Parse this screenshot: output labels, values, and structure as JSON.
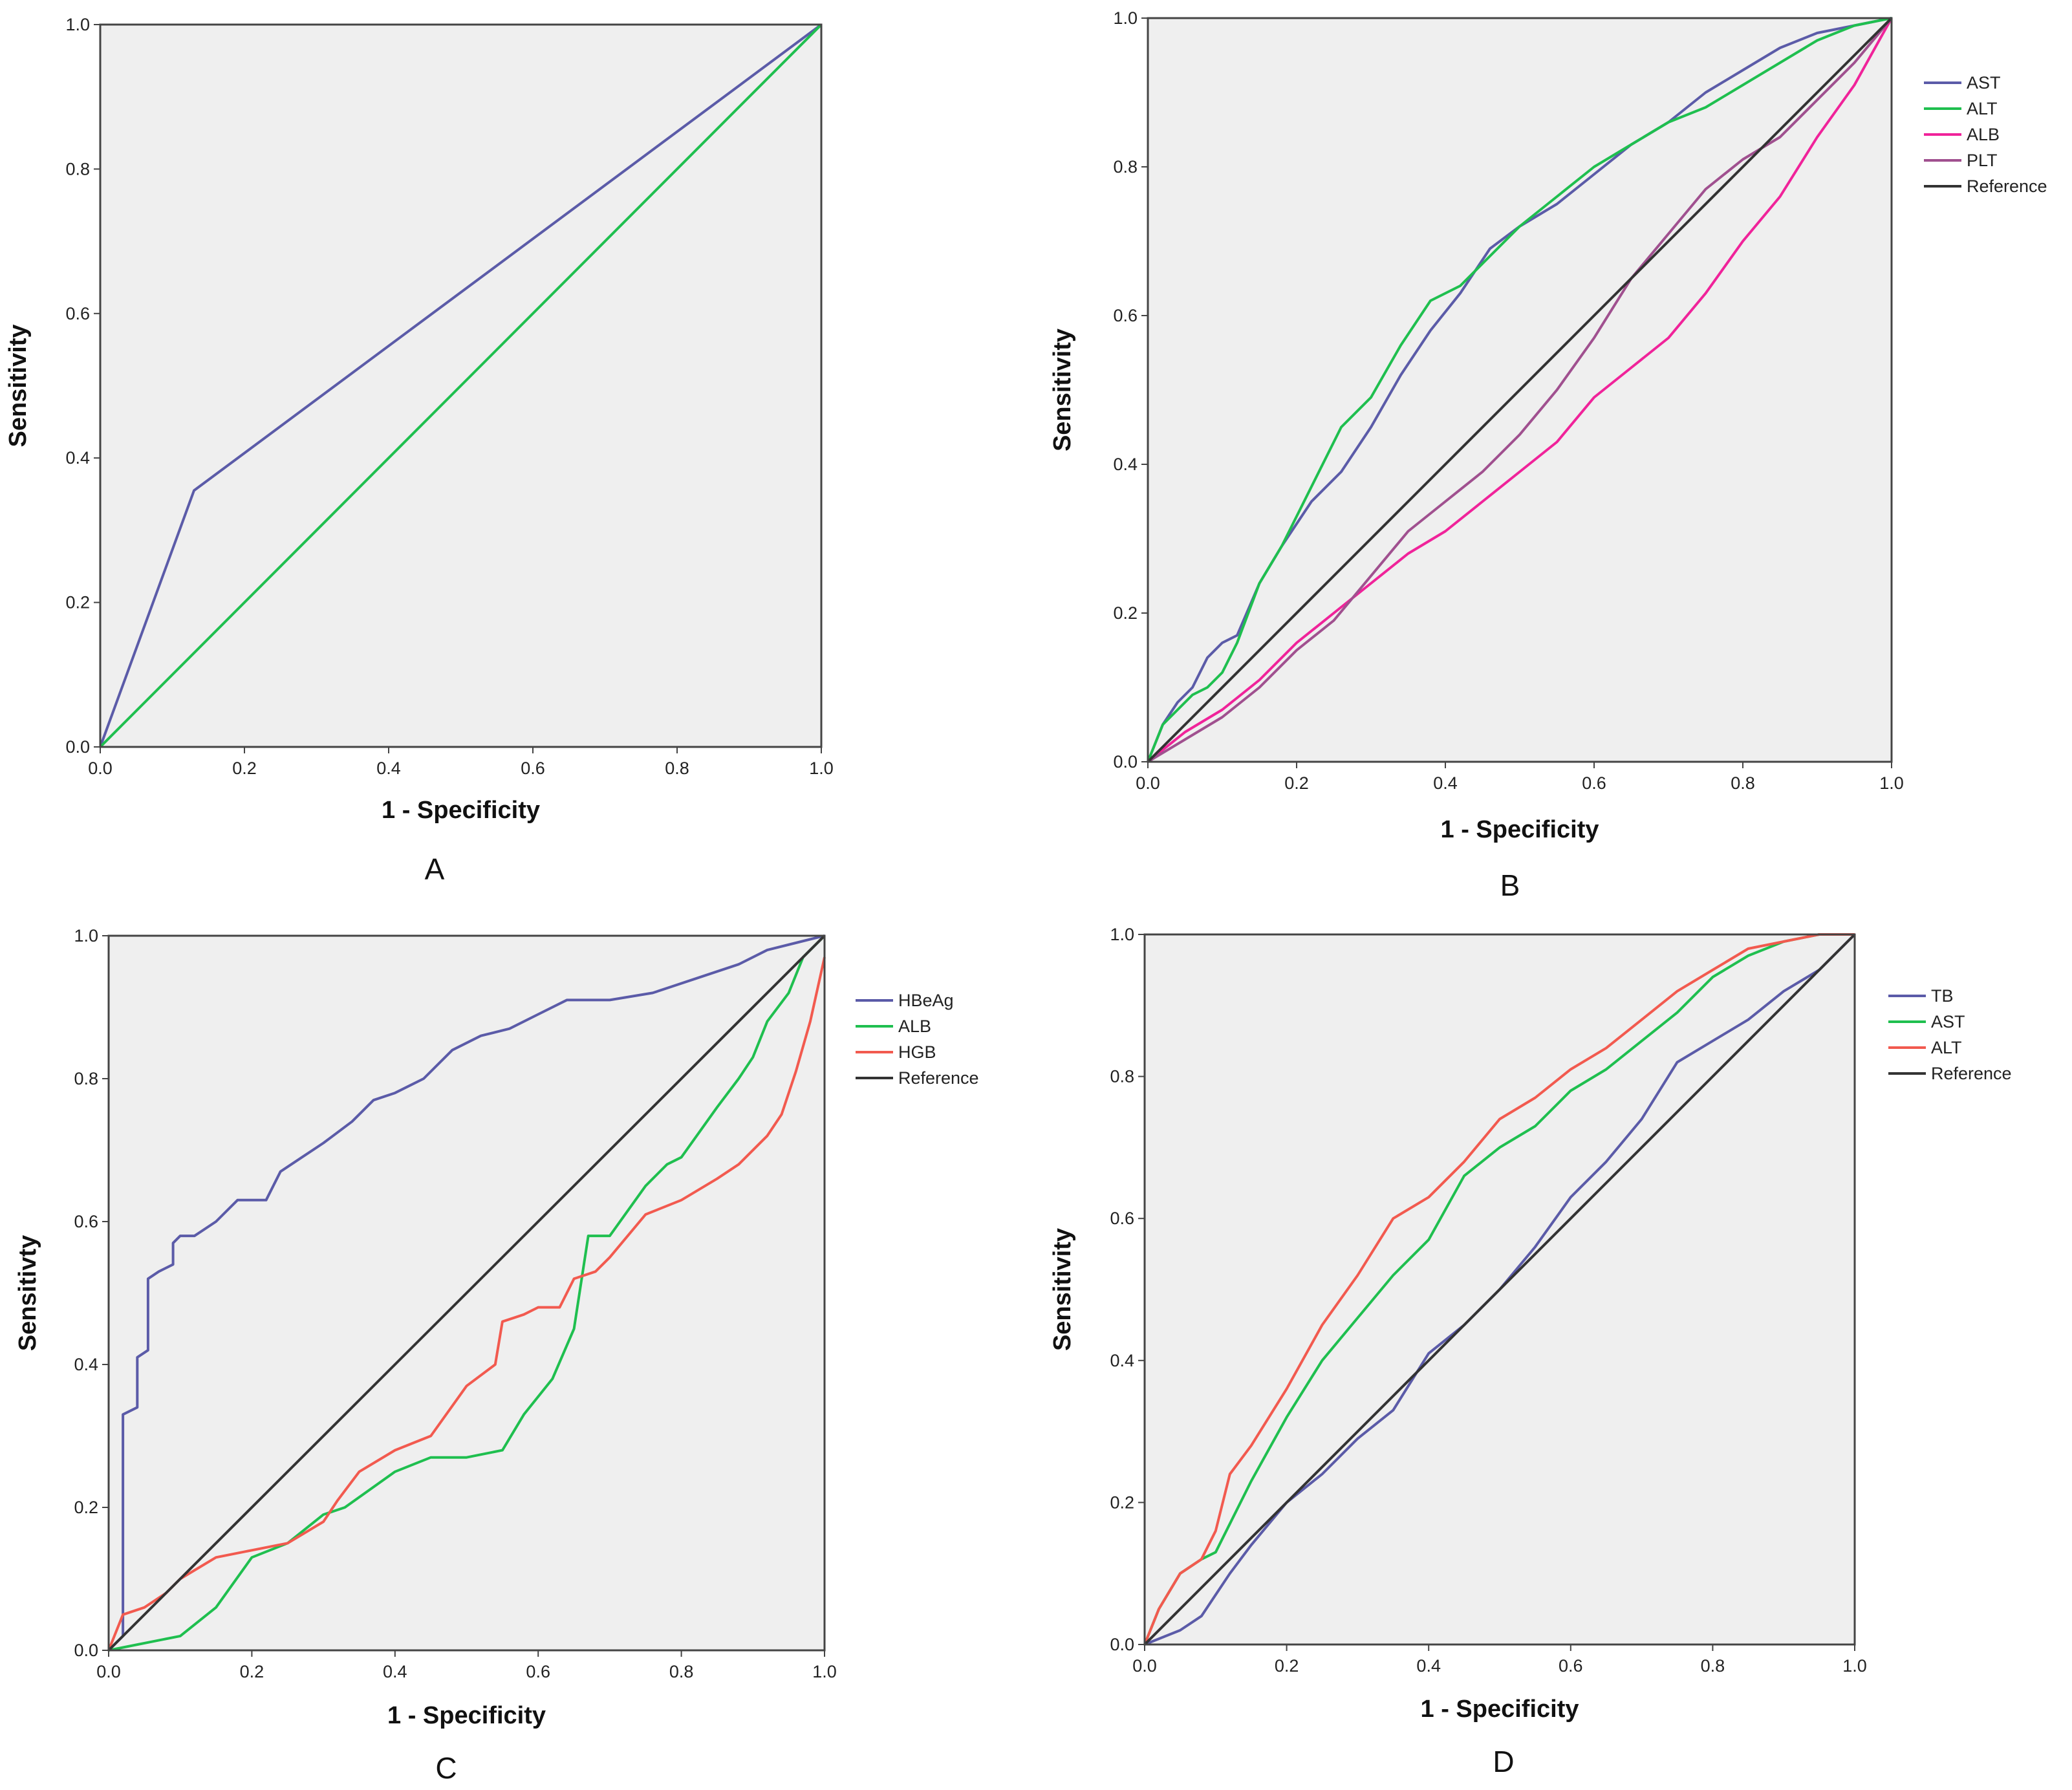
{
  "chart_data": [
    {
      "type": "line",
      "panel_label": "A",
      "xlabel": "1 - Specificity",
      "ylabel": "Sensitivity",
      "xlim": [
        0,
        1
      ],
      "ylim": [
        0,
        1
      ],
      "x_ticks": [
        "0.0",
        "0.2",
        "0.4",
        "0.6",
        "0.8",
        "1.0"
      ],
      "y_ticks": [
        "0.0",
        "0.2",
        "0.4",
        "0.6",
        "0.8",
        "1.0"
      ],
      "background": "#efefef",
      "legend": false,
      "series": [
        {
          "color": "#5b5ba8",
          "x": [
            0,
            0.13,
            1.0
          ],
          "y": [
            0,
            0.355,
            1.0
          ]
        },
        {
          "color": "#1fbf4f",
          "x": [
            0,
            1.0
          ],
          "y": [
            0,
            1.0
          ]
        }
      ]
    },
    {
      "type": "line",
      "panel_label": "B",
      "xlabel": "1 - Specificity",
      "ylabel": "Sensitivity",
      "xlim": [
        0,
        1
      ],
      "ylim": [
        0,
        1
      ],
      "x_ticks": [
        "0.0",
        "0.2",
        "0.4",
        "0.6",
        "0.8",
        "1.0"
      ],
      "y_ticks": [
        "0.0",
        "0.2",
        "0.4",
        "0.6",
        "0.8",
        "1.0"
      ],
      "background": "#efefef",
      "legend": "right",
      "series": [
        {
          "name": "AST",
          "color": "#5b5ba8",
          "x": [
            0,
            0.02,
            0.04,
            0.06,
            0.08,
            0.1,
            0.12,
            0.15,
            0.18,
            0.22,
            0.26,
            0.3,
            0.34,
            0.38,
            0.42,
            0.46,
            0.5,
            0.55,
            0.6,
            0.65,
            0.7,
            0.75,
            0.8,
            0.85,
            0.9,
            0.95,
            1.0
          ],
          "y": [
            0,
            0.05,
            0.08,
            0.1,
            0.14,
            0.16,
            0.17,
            0.24,
            0.29,
            0.35,
            0.39,
            0.45,
            0.52,
            0.58,
            0.63,
            0.69,
            0.72,
            0.75,
            0.79,
            0.83,
            0.86,
            0.9,
            0.93,
            0.96,
            0.98,
            0.99,
            1.0
          ]
        },
        {
          "name": "ALT",
          "color": "#1fbf4f",
          "x": [
            0,
            0.02,
            0.04,
            0.06,
            0.08,
            0.1,
            0.12,
            0.15,
            0.18,
            0.22,
            0.26,
            0.3,
            0.34,
            0.38,
            0.42,
            0.46,
            0.5,
            0.55,
            0.6,
            0.65,
            0.7,
            0.75,
            0.8,
            0.85,
            0.9,
            0.95,
            1.0
          ],
          "y": [
            0,
            0.05,
            0.07,
            0.09,
            0.1,
            0.12,
            0.16,
            0.24,
            0.29,
            0.37,
            0.45,
            0.49,
            0.56,
            0.62,
            0.64,
            0.68,
            0.72,
            0.76,
            0.8,
            0.83,
            0.86,
            0.88,
            0.91,
            0.94,
            0.97,
            0.99,
            1.0
          ]
        },
        {
          "name": "ALB",
          "color": "#f0239a",
          "x": [
            0,
            0.05,
            0.1,
            0.15,
            0.2,
            0.25,
            0.3,
            0.35,
            0.4,
            0.45,
            0.5,
            0.55,
            0.6,
            0.65,
            0.7,
            0.75,
            0.8,
            0.85,
            0.9,
            0.95,
            1.0
          ],
          "y": [
            0,
            0.04,
            0.07,
            0.11,
            0.16,
            0.2,
            0.24,
            0.28,
            0.31,
            0.35,
            0.39,
            0.43,
            0.49,
            0.53,
            0.57,
            0.63,
            0.7,
            0.76,
            0.84,
            0.91,
            1.0
          ]
        },
        {
          "name": "PLT",
          "color": "#a0508f",
          "x": [
            0,
            0.05,
            0.1,
            0.15,
            0.2,
            0.25,
            0.3,
            0.35,
            0.4,
            0.45,
            0.5,
            0.55,
            0.6,
            0.65,
            0.7,
            0.75,
            0.8,
            0.85,
            0.9,
            0.95,
            1.0
          ],
          "y": [
            0,
            0.03,
            0.06,
            0.1,
            0.15,
            0.19,
            0.25,
            0.31,
            0.35,
            0.39,
            0.44,
            0.5,
            0.57,
            0.65,
            0.71,
            0.77,
            0.81,
            0.84,
            0.89,
            0.94,
            1.0
          ]
        },
        {
          "name": "Reference",
          "color": "#333333",
          "x": [
            0,
            1.0
          ],
          "y": [
            0,
            1.0
          ]
        }
      ]
    },
    {
      "type": "line",
      "panel_label": "C",
      "xlabel": "1 - Specificity",
      "ylabel": "Sensitivty",
      "xlim": [
        0,
        1
      ],
      "ylim": [
        0,
        1
      ],
      "x_ticks": [
        "0.0",
        "0.2",
        "0.4",
        "0.6",
        "0.8",
        "1.0"
      ],
      "y_ticks": [
        "0.0",
        "0.2",
        "0.4",
        "0.6",
        "0.8",
        "1.0"
      ],
      "background": "#efefef",
      "legend": "right",
      "series": [
        {
          "name": "HBeAg",
          "color": "#5b5ba8",
          "x": [
            0,
            0.02,
            0.02,
            0.04,
            0.04,
            0.055,
            0.055,
            0.07,
            0.07,
            0.09,
            0.09,
            0.1,
            0.12,
            0.15,
            0.18,
            0.22,
            0.24,
            0.27,
            0.3,
            0.34,
            0.37,
            0.4,
            0.44,
            0.48,
            0.52,
            0.56,
            0.6,
            0.64,
            0.7,
            0.76,
            0.82,
            0.88,
            0.92,
            0.96,
            1.0
          ],
          "y": [
            0,
            0.02,
            0.33,
            0.34,
            0.41,
            0.42,
            0.52,
            0.53,
            0.53,
            0.54,
            0.57,
            0.58,
            0.58,
            0.6,
            0.63,
            0.63,
            0.67,
            0.69,
            0.71,
            0.74,
            0.77,
            0.78,
            0.8,
            0.84,
            0.86,
            0.87,
            0.89,
            0.91,
            0.91,
            0.92,
            0.94,
            0.96,
            0.98,
            0.99,
            1.0
          ]
        },
        {
          "name": "ALB",
          "color": "#1fbf4f",
          "x": [
            0,
            0.05,
            0.1,
            0.15,
            0.2,
            0.25,
            0.3,
            0.33,
            0.4,
            0.45,
            0.5,
            0.55,
            0.58,
            0.62,
            0.65,
            0.67,
            0.7,
            0.75,
            0.78,
            0.8,
            0.85,
            0.88,
            0.9,
            0.92,
            0.95,
            0.97,
            1.0
          ],
          "y": [
            0,
            0.01,
            0.02,
            0.06,
            0.13,
            0.15,
            0.19,
            0.2,
            0.25,
            0.27,
            0.27,
            0.28,
            0.33,
            0.38,
            0.45,
            0.58,
            0.58,
            0.65,
            0.68,
            0.69,
            0.76,
            0.8,
            0.83,
            0.88,
            0.92,
            0.97,
            1.0
          ]
        },
        {
          "name": "HGB",
          "color": "#f25a4f",
          "x": [
            0,
            0.02,
            0.05,
            0.08,
            0.1,
            0.15,
            0.2,
            0.25,
            0.3,
            0.32,
            0.35,
            0.4,
            0.45,
            0.5,
            0.54,
            0.55,
            0.58,
            0.6,
            0.63,
            0.65,
            0.68,
            0.7,
            0.75,
            0.8,
            0.85,
            0.88,
            0.92,
            0.94,
            0.96,
            0.98,
            1.0
          ],
          "y": [
            0,
            0.05,
            0.06,
            0.08,
            0.1,
            0.13,
            0.14,
            0.15,
            0.18,
            0.21,
            0.25,
            0.28,
            0.3,
            0.37,
            0.4,
            0.46,
            0.47,
            0.48,
            0.48,
            0.52,
            0.53,
            0.55,
            0.61,
            0.63,
            0.66,
            0.68,
            0.72,
            0.75,
            0.81,
            0.88,
            0.97
          ]
        },
        {
          "name": "Reference",
          "color": "#333333",
          "x": [
            0,
            1.0
          ],
          "y": [
            0,
            1.0
          ]
        }
      ]
    },
    {
      "type": "line",
      "panel_label": "D",
      "xlabel": "1 - Specificity",
      "ylabel": "Sensitivity",
      "xlim": [
        0,
        1
      ],
      "ylim": [
        0,
        1
      ],
      "x_ticks": [
        "0.0",
        "0.2",
        "0.4",
        "0.6",
        "0.8",
        "1.0"
      ],
      "y_ticks": [
        "0.0",
        "0.2",
        "0.4",
        "0.6",
        "0.8",
        "1.0"
      ],
      "background": "#efefef",
      "legend": "right",
      "series": [
        {
          "name": "TB",
          "color": "#5b5ba8",
          "x": [
            0,
            0.05,
            0.08,
            0.1,
            0.12,
            0.15,
            0.2,
            0.25,
            0.3,
            0.35,
            0.4,
            0.45,
            0.5,
            0.55,
            0.6,
            0.65,
            0.7,
            0.75,
            0.8,
            0.85,
            0.9,
            0.95,
            1.0
          ],
          "y": [
            0,
            0.02,
            0.04,
            0.07,
            0.1,
            0.14,
            0.2,
            0.24,
            0.29,
            0.33,
            0.41,
            0.45,
            0.5,
            0.56,
            0.63,
            0.68,
            0.74,
            0.82,
            0.85,
            0.88,
            0.92,
            0.95,
            1.0
          ]
        },
        {
          "name": "AST",
          "color": "#1fbf4f",
          "x": [
            0,
            0.02,
            0.05,
            0.08,
            0.1,
            0.12,
            0.15,
            0.2,
            0.25,
            0.3,
            0.35,
            0.4,
            0.45,
            0.5,
            0.55,
            0.6,
            0.65,
            0.7,
            0.75,
            0.8,
            0.85,
            0.9,
            0.95,
            1.0
          ],
          "y": [
            0,
            0.05,
            0.1,
            0.12,
            0.13,
            0.17,
            0.23,
            0.32,
            0.4,
            0.46,
            0.52,
            0.57,
            0.66,
            0.7,
            0.73,
            0.78,
            0.81,
            0.85,
            0.89,
            0.94,
            0.97,
            0.99,
            1.0,
            1.0
          ]
        },
        {
          "name": "ALT",
          "color": "#f25a4f",
          "x": [
            0,
            0.02,
            0.05,
            0.08,
            0.1,
            0.12,
            0.15,
            0.2,
            0.25,
            0.3,
            0.35,
            0.4,
            0.45,
            0.5,
            0.55,
            0.6,
            0.65,
            0.7,
            0.75,
            0.8,
            0.85,
            0.9,
            0.95,
            1.0
          ],
          "y": [
            0,
            0.05,
            0.1,
            0.12,
            0.16,
            0.24,
            0.28,
            0.36,
            0.45,
            0.52,
            0.6,
            0.63,
            0.68,
            0.74,
            0.77,
            0.81,
            0.84,
            0.88,
            0.92,
            0.95,
            0.98,
            0.99,
            1.0,
            1.0
          ]
        },
        {
          "name": "Reference",
          "color": "#333333",
          "x": [
            0,
            1.0
          ],
          "y": [
            0,
            1.0
          ]
        }
      ]
    }
  ]
}
